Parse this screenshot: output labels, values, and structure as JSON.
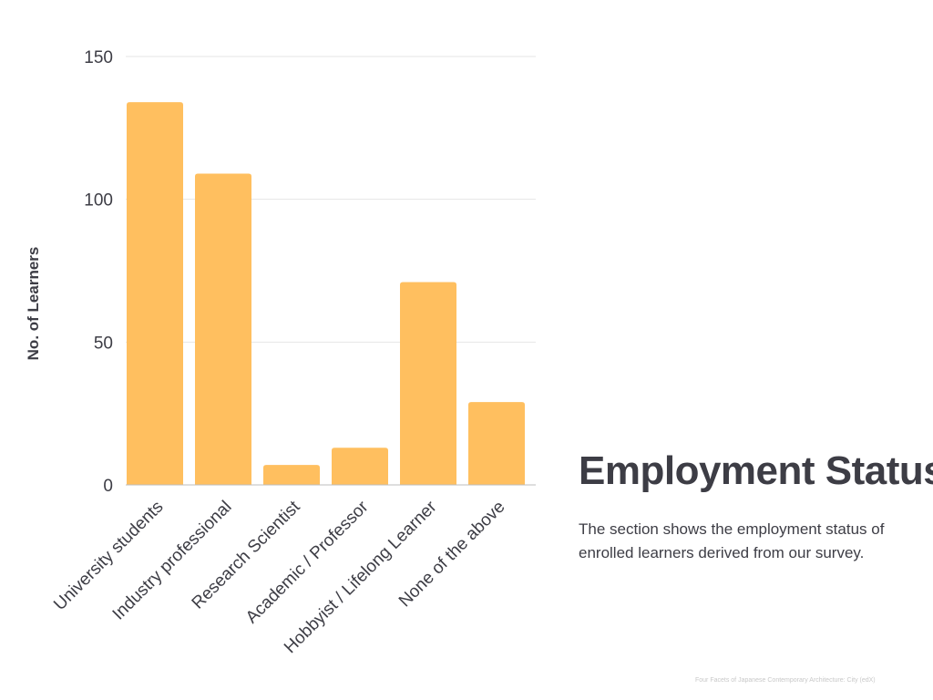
{
  "chart_data": {
    "type": "bar",
    "categories": [
      "University students",
      "Industry professional",
      "Research Scientist",
      "Academic / Professor",
      "Hobbyist / Lifelong Learner",
      "None of the above"
    ],
    "values": [
      134,
      109,
      7,
      13,
      71,
      29
    ],
    "ylabel": "No. of Learners",
    "ylim": [
      0,
      150
    ],
    "yticks": [
      0,
      50,
      100,
      150
    ],
    "grid": true,
    "bar_color": "#ffbf5f"
  },
  "slide": {
    "title": "Employment Status",
    "description": "The section shows the employment status of enrolled learners derived from our survey.",
    "footer": "Four Facets of Japanese Contemporary Architecture: City (edX)"
  },
  "colors": {
    "text": "#3d3d45",
    "grid": "#e6e6e6",
    "axis": "#bdbdbd"
  }
}
